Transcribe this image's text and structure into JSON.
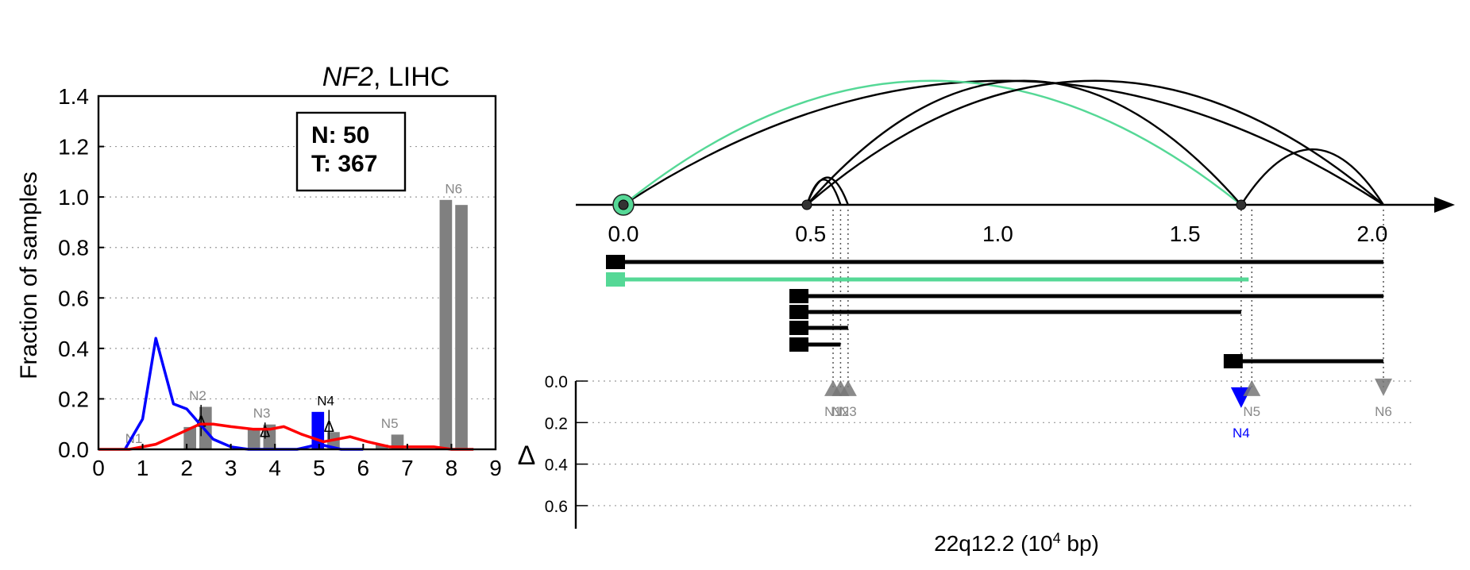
{
  "left_panel": {
    "title_gene": "NF2",
    "title_rest": ", LIHC",
    "ylabel": "Fraction of samples",
    "legend_n": "N: 50",
    "legend_t": "T: 367"
  },
  "right_panel": {
    "xlabel": "22q12.2 (10",
    "xlabel_sup": "4",
    "xlabel_tail": " bp)",
    "delta_label": "Δ"
  },
  "chart_data": [
    {
      "type": "bar",
      "title": "NF2, LIHC",
      "ylabel": "Fraction of samples",
      "xlim": [
        0,
        9
      ],
      "ylim": [
        0,
        1.4
      ],
      "xticks": [
        0,
        1,
        2,
        3,
        4,
        5,
        6,
        7,
        8,
        9
      ],
      "yticks": [
        0.0,
        0.2,
        0.4,
        0.6,
        0.8,
        1.0,
        1.2,
        1.4
      ],
      "grid": "horizontal-dotted",
      "legend": "top-right",
      "legend_text": [
        "N: 50",
        "T: 367"
      ],
      "groups": [
        {
          "label": "N1",
          "normal": 0.0,
          "tumor": 0.0,
          "label_color": "#888888",
          "delta_marker": false
        },
        {
          "label": "N2",
          "normal": 0.09,
          "tumor": 0.17,
          "label_color": "#888888",
          "delta_marker": true
        },
        {
          "label": "N3",
          "normal": 0.08,
          "tumor": 0.1,
          "label_color": "#888888",
          "delta_marker": true
        },
        {
          "label": "N4",
          "normal": 0.15,
          "tumor": 0.07,
          "label_color": "#000000",
          "delta_marker": true,
          "highlight": "#0000ff"
        },
        {
          "label": "N5",
          "normal": 0.02,
          "tumor": 0.06,
          "label_color": "#888888",
          "delta_marker": false
        },
        {
          "label": "N6",
          "normal": 0.99,
          "tumor": 0.97,
          "label_color": "#888888",
          "delta_marker": false
        }
      ],
      "series": [
        {
          "color": "#0000ff",
          "x": [
            0.6,
            1.0,
            1.3,
            1.7,
            2.0,
            2.3,
            2.6,
            3.0,
            3.4,
            4.0,
            4.5,
            5.0,
            5.5,
            6.0
          ],
          "y": [
            0.0,
            0.12,
            0.44,
            0.18,
            0.16,
            0.1,
            0.04,
            0.01,
            0.0,
            0.0,
            0.0,
            0.02,
            0.0,
            0.0
          ]
        },
        {
          "color": "#ff0000",
          "x": [
            0.0,
            0.7,
            1.3,
            1.8,
            2.3,
            2.6,
            3.0,
            3.5,
            3.9,
            4.2,
            4.6,
            5.1,
            5.4,
            5.7,
            6.1,
            6.6,
            7.0,
            7.6,
            8.0,
            8.5
          ],
          "y": [
            0.0,
            0.0,
            0.02,
            0.06,
            0.1,
            0.1,
            0.09,
            0.08,
            0.08,
            0.09,
            0.06,
            0.03,
            0.04,
            0.05,
            0.03,
            0.01,
            0.01,
            0.01,
            0.0,
            0.0
          ]
        }
      ]
    },
    {
      "type": "scatter",
      "xlabel": "22q12.2 (10^4 bp)",
      "xlim": [
        0.0,
        2.1
      ],
      "xticks": [
        0.0,
        0.5,
        1.0,
        1.5,
        2.0
      ],
      "delta_ylim": [
        0.0,
        0.65
      ],
      "delta_yticks": [
        0.0,
        0.2,
        0.4,
        0.6
      ],
      "junctions": [
        {
          "from": 0.0,
          "to": 2.03,
          "color": "#000000"
        },
        {
          "from": 0.0,
          "to": 1.65,
          "color": "#55d896"
        },
        {
          "from": 0.49,
          "to": 2.03,
          "color": "#000000"
        },
        {
          "from": 0.49,
          "to": 1.65,
          "color": "#000000"
        },
        {
          "from": 0.49,
          "to": 0.6,
          "color": "#000000"
        },
        {
          "from": 0.49,
          "to": 0.58,
          "color": "#000000"
        },
        {
          "from": 1.65,
          "to": 2.03,
          "color": "#000000"
        }
      ],
      "nodes": [
        {
          "x": 0.0,
          "highlight": true
        },
        {
          "x": 0.49,
          "highlight": false
        },
        {
          "x": 1.65,
          "highlight": false
        }
      ],
      "isoforms": [
        {
          "start": 0.0,
          "end": 2.03,
          "color": "#000000"
        },
        {
          "start": 0.0,
          "end": 1.67,
          "color": "#55d896"
        },
        {
          "start": 0.49,
          "end": 2.03,
          "color": "#000000"
        },
        {
          "start": 0.49,
          "end": 1.65,
          "color": "#000000"
        },
        {
          "start": 0.49,
          "end": 0.6,
          "color": "#000000"
        },
        {
          "start": 0.49,
          "end": 0.58,
          "color": "#000000"
        },
        {
          "start": 1.65,
          "end": 2.03,
          "color": "#000000"
        }
      ],
      "deltas": [
        {
          "label": "N1",
          "x": 0.56,
          "delta": 0.03,
          "direction": "up",
          "color": "#777777"
        },
        {
          "label": "N2",
          "x": 0.58,
          "delta": 0.03,
          "direction": "up",
          "color": "#777777"
        },
        {
          "label": "N3",
          "x": 0.6,
          "delta": 0.03,
          "direction": "up",
          "color": "#777777"
        },
        {
          "label": "N4",
          "x": 1.65,
          "delta": 0.08,
          "direction": "down",
          "color": "#0000ff"
        },
        {
          "label": "N5",
          "x": 1.67,
          "delta": 0.03,
          "direction": "up",
          "color": "#777777"
        },
        {
          "label": "N6",
          "x": 2.03,
          "delta": 0.03,
          "direction": "down",
          "color": "#777777"
        }
      ]
    }
  ]
}
